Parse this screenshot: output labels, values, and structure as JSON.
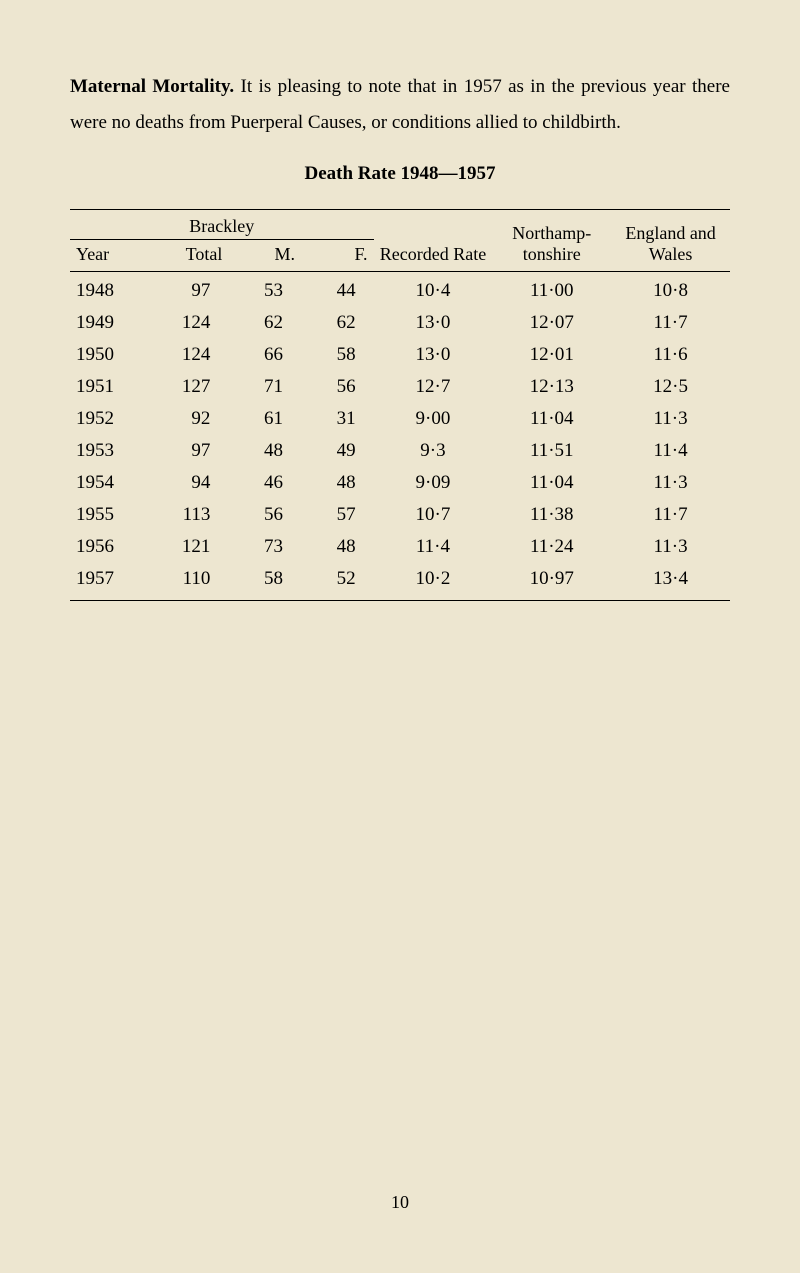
{
  "intro": {
    "lead": "Maternal Mortality.",
    "body": " It is pleasing to note that in 1957 as in the previous year there were no deaths from Puerperal Causes, or conditions allied to childbirth."
  },
  "table": {
    "title": "Death Rate 1948—1957",
    "columns": {
      "group": "Brackley",
      "year": "Year",
      "total": "Total",
      "m": "M.",
      "f": "F.",
      "recorded_rate": "Recorded Rate",
      "northamp": "Northamp- tonshire",
      "england_wales": "England and Wales"
    },
    "rows": [
      {
        "year": "1948",
        "total": "97",
        "m": "53",
        "f": "44",
        "rate": "10·4",
        "north": "11·00",
        "wales": "10·8"
      },
      {
        "year": "1949",
        "total": "124",
        "m": "62",
        "f": "62",
        "rate": "13·0",
        "north": "12·07",
        "wales": "11·7"
      },
      {
        "year": "1950",
        "total": "124",
        "m": "66",
        "f": "58",
        "rate": "13·0",
        "north": "12·01",
        "wales": "11·6"
      },
      {
        "year": "1951",
        "total": "127",
        "m": "71",
        "f": "56",
        "rate": "12·7",
        "north": "12·13",
        "wales": "12·5"
      },
      {
        "year": "1952",
        "total": "92",
        "m": "61",
        "f": "31",
        "rate": "9·00",
        "north": "11·04",
        "wales": "11·3"
      },
      {
        "year": "1953",
        "total": "97",
        "m": "48",
        "f": "49",
        "rate": "9·3",
        "north": "11·51",
        "wales": "11·4"
      },
      {
        "year": "1954",
        "total": "94",
        "m": "46",
        "f": "48",
        "rate": "9·09",
        "north": "11·04",
        "wales": "11·3"
      },
      {
        "year": "1955",
        "total": "113",
        "m": "56",
        "f": "57",
        "rate": "10·7",
        "north": "11·38",
        "wales": "11·7"
      },
      {
        "year": "1956",
        "total": "121",
        "m": "73",
        "f": "48",
        "rate": "11·4",
        "north": "11·24",
        "wales": "11·3"
      },
      {
        "year": "1957",
        "total": "110",
        "m": "58",
        "f": "52",
        "rate": "10·2",
        "north": "10·97",
        "wales": "13·4"
      }
    ],
    "style": {
      "background_color": "#ede6d0",
      "text_color": "#000000",
      "rule_color": "#000000",
      "font_family": "Times New Roman",
      "body_fontsize_pt": 14,
      "line_height": 1.9
    }
  },
  "page_number": "10"
}
